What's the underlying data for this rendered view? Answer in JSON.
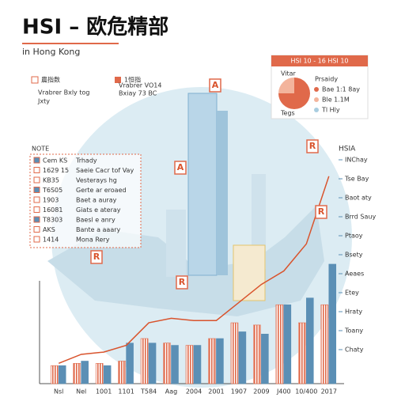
{
  "header": {
    "title": "HSI – 欧危精部",
    "subtitle": "in Hong Kong"
  },
  "key_a": {
    "title": "農指数",
    "lines": [
      "Vrabrer Bxly tog",
      "Jxty"
    ]
  },
  "key_b": {
    "title": "1恒指",
    "lines": [
      "Vrabrer VO14",
      "Bxiay 73 BC"
    ]
  },
  "note": {
    "title": "NOTE",
    "rows": [
      [
        "Cem KS",
        "Trhady"
      ],
      [
        "1629 15",
        "Saeie Cacr tof Vay"
      ],
      [
        "KB35",
        "Vesterays hg"
      ],
      [
        "T6S05",
        "Gerte ar eroaed"
      ],
      [
        "1903",
        "Baet a auray"
      ],
      [
        "16081",
        "Giats e ateray"
      ],
      [
        "T8303",
        "Baesl e anry"
      ],
      [
        "AKS",
        "Bante a aaary"
      ],
      [
        "1414",
        "Mona Rery"
      ]
    ]
  },
  "card": {
    "title": "HSI 10 - 16 HSI 10",
    "pie_label": "Vitar",
    "sub": "Prsaidy",
    "legend": [
      "Bae 1:1 8ay",
      "Ble 1.1M",
      "Tl Hly"
    ],
    "foot": "Tegs",
    "pie": [
      75,
      25
    ]
  },
  "right": {
    "title": "HSIA",
    "lines": [
      "INChay",
      "Tse Bay",
      "Baot aty",
      "Brrd Sauy",
      "Ptaoy",
      "Bsety",
      "Aeaes",
      "Etey",
      "Hraty",
      "Toany",
      "Chaty"
    ]
  },
  "markers": [
    "R",
    "A",
    "R",
    "R",
    "R",
    "A"
  ],
  "chart_data": {
    "type": "bar",
    "categories": [
      "Nsl",
      "Nel",
      "1001",
      "1101",
      "T584",
      "Aag",
      "2004",
      "2001",
      "1907",
      "2009",
      "J400",
      "10/400",
      "2017"
    ],
    "ylim": [
      0,
      100
    ],
    "series": [
      {
        "type": "bar",
        "color": "#e0694a",
        "values": [
          8,
          9,
          9,
          10,
          20,
          18,
          17,
          20,
          27,
          26,
          35,
          27,
          35
        ]
      },
      {
        "type": "bar",
        "color": "#5b8fb5",
        "values": [
          8,
          10,
          8,
          18,
          18,
          17,
          17,
          20,
          23,
          22,
          35,
          38,
          53
        ]
      },
      {
        "type": "line",
        "color": "#d9532c",
        "values": [
          9,
          13,
          14,
          17,
          27,
          29,
          28,
          28,
          36,
          44,
          50,
          62,
          92
        ]
      }
    ]
  }
}
